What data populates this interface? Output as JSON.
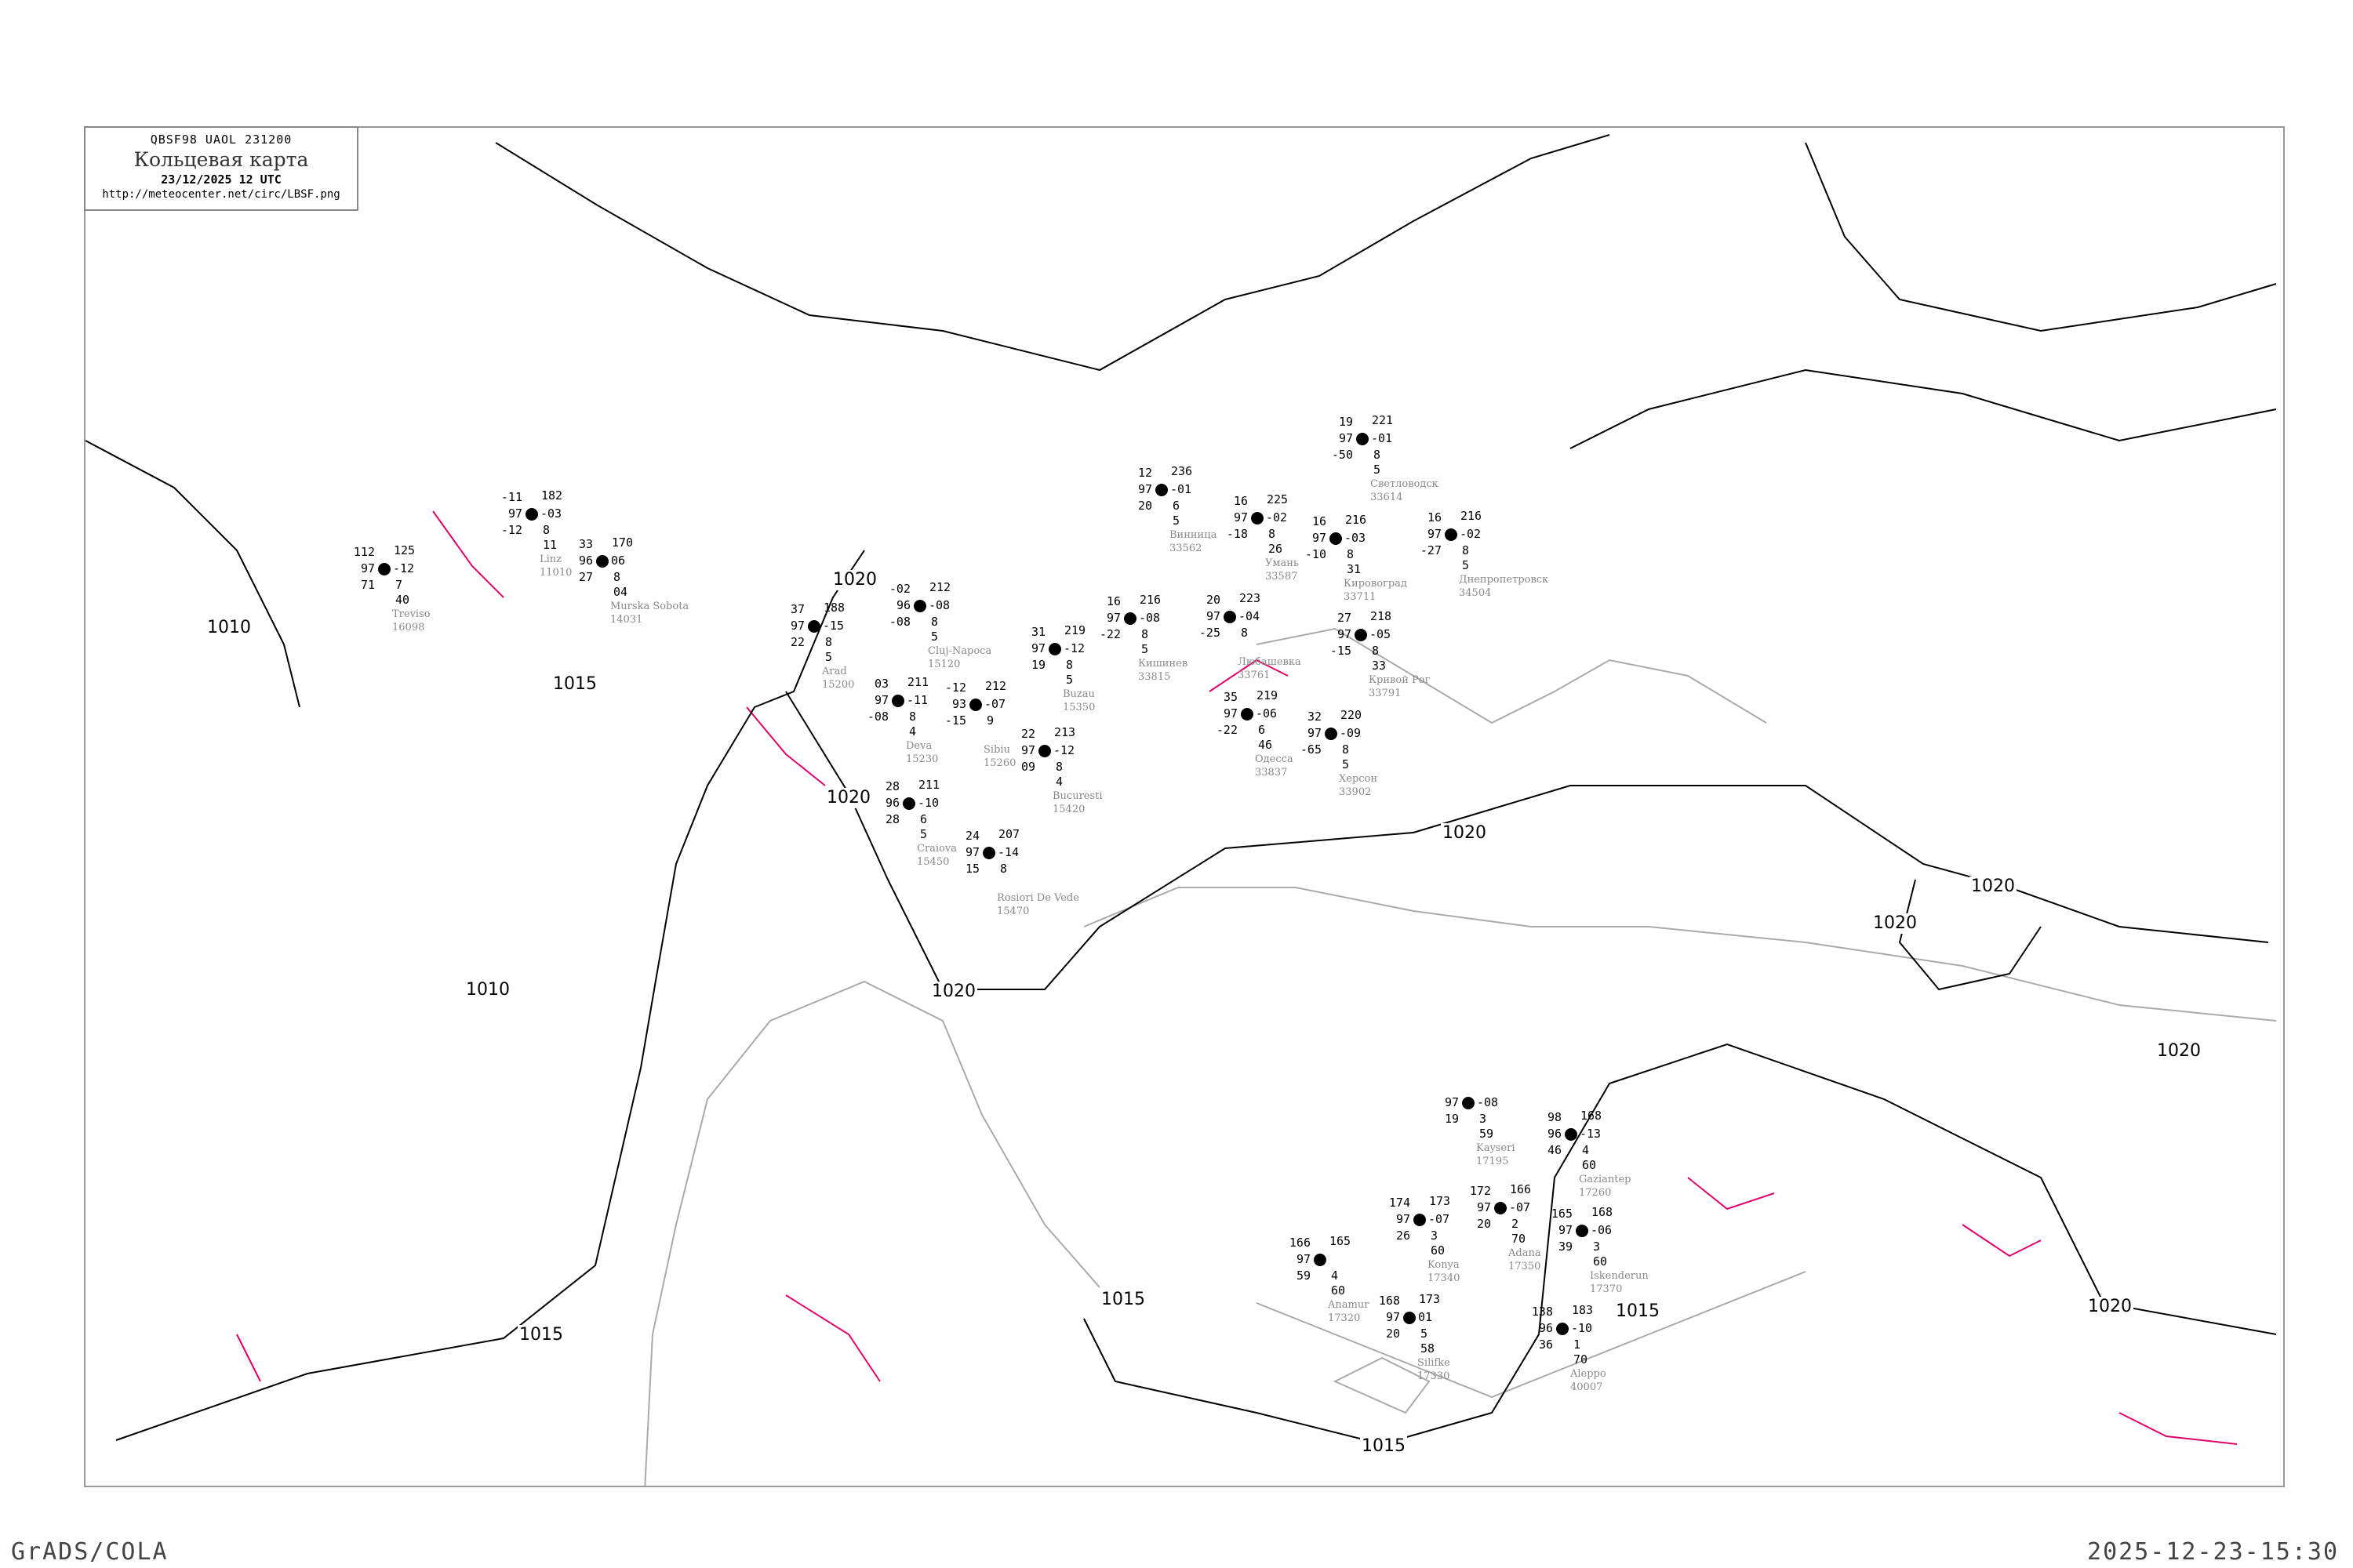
{
  "header": {
    "code": "QBSF98   UAOL   231200",
    "title": "Кольцевая карта",
    "date": "23/12/2025 12 UTC",
    "url": "http://meteocenter.net/circ/LBSF.png"
  },
  "footer": {
    "left": "GrADS/COLA",
    "right": "2025-12-23-15:30"
  },
  "colors": {
    "isobar": "#000000",
    "coastline": "#aaaaaa",
    "border": "#e0006a",
    "station_name": "#888888"
  },
  "isobar_labels": [
    "1020",
    "1020",
    "1020",
    "1020",
    "1020",
    "1020",
    "1020",
    "1020",
    "1015",
    "1015",
    "1015",
    "1015",
    "1015",
    "1010",
    "1010"
  ],
  "stations": [
    {
      "name": "Arad",
      "id": "15200",
      "t": "37",
      "p": "188",
      "l": "97",
      "r": "-15",
      "bl": "22",
      "b1": "8",
      "b2": "5"
    },
    {
      "name": "Cluj-Napoca",
      "id": "15120",
      "t": "-02",
      "p": "212",
      "l": "96",
      "r": "-08",
      "bl": "-08",
      "b1": "8",
      "b2": "5"
    },
    {
      "name": "Deva",
      "id": "15230",
      "t": "03",
      "p": "211",
      "l": "97",
      "r": "-11",
      "bl": "-08",
      "b1": "8",
      "b2": "4"
    },
    {
      "name": "Sibiu",
      "id": "15260",
      "t": "-12",
      "p": "212",
      "l": "93",
      "r": "-07",
      "bl": "-15",
      "b1": "9",
      "b2": ""
    },
    {
      "name": "Craiova",
      "id": "15450",
      "t": "28",
      "p": "211",
      "l": "96",
      "r": "-10",
      "bl": "28",
      "b1": "6",
      "b2": "5"
    },
    {
      "name": "Bucuresti",
      "id": "15420",
      "t": "22",
      "p": "213",
      "l": "97",
      "r": "-12",
      "bl": "09",
      "b1": "8",
      "b2": "4"
    },
    {
      "name": "Buzau",
      "id": "15350",
      "t": "31",
      "p": "219",
      "l": "97",
      "r": "-12",
      "bl": "19",
      "b1": "8",
      "b2": "5"
    },
    {
      "name": "Rosiori De Vede",
      "id": "15470",
      "t": "24",
      "p": "207",
      "l": "97",
      "r": "-14",
      "bl": "15",
      "b1": "8",
      "b2": ""
    },
    {
      "name": "Винница",
      "id": "33562",
      "t": "12",
      "p": "236",
      "l": "97",
      "r": "-01",
      "bl": "20",
      "b1": "6",
      "b2": "5"
    },
    {
      "name": "Умань",
      "id": "33587",
      "t": "16",
      "p": "225",
      "l": "97",
      "r": "-02",
      "bl": "-18",
      "b1": "8",
      "b2": "26"
    },
    {
      "name": "Любашевка",
      "id": "33761",
      "t": "20",
      "p": "223",
      "l": "97",
      "r": "-04",
      "bl": "-25",
      "b1": "8",
      "b2": ""
    },
    {
      "name": "Кировоград",
      "id": "33711",
      "t": "16",
      "p": "216",
      "l": "97",
      "r": "-03",
      "bl": "-10",
      "b1": "8",
      "b2": "31"
    },
    {
      "name": "Кривой Рог",
      "id": "33791",
      "t": "27",
      "p": "218",
      "l": "97",
      "r": "-05",
      "bl": "-15",
      "b1": "8",
      "b2": "33"
    },
    {
      "name": "Кишинев",
      "id": "33815",
      "t": "16",
      "p": "216",
      "l": "97",
      "r": "-08",
      "bl": "-22",
      "b1": "8",
      "b2": "5"
    },
    {
      "name": "Одесса",
      "id": "33837",
      "t": "35",
      "p": "219",
      "l": "97",
      "r": "-06",
      "bl": "-22",
      "b1": "6",
      "b2": "46"
    },
    {
      "name": "Херсон",
      "id": "33902",
      "t": "32",
      "p": "220",
      "l": "97",
      "r": "-09",
      "bl": "-65",
      "b1": "8",
      "b2": "5"
    },
    {
      "name": "Светловодск",
      "id": "33614",
      "t": "19",
      "p": "221",
      "l": "97",
      "r": "-01",
      "bl": "-50",
      "b1": "8",
      "b2": "5"
    },
    {
      "name": "Днепропетровск",
      "id": "34504",
      "t": "16",
      "p": "216",
      "l": "97",
      "r": "-02",
      "bl": "-27",
      "b1": "8",
      "b2": "5"
    },
    {
      "name": "Konya",
      "id": "17340",
      "t": "174",
      "p": "173",
      "l": "97",
      "r": "-07",
      "bl": "26",
      "b1": "3",
      "b2": "60"
    },
    {
      "name": "Anamur",
      "id": "17320",
      "t": "166",
      "p": "165",
      "l": "97",
      "r": "",
      "bl": "59",
      "b1": "4",
      "b2": "60"
    },
    {
      "name": "Silifke",
      "id": "17330",
      "t": "168",
      "p": "173",
      "l": "97",
      "r": "01",
      "bl": "20",
      "b1": "5",
      "b2": "58"
    },
    {
      "name": "Adana",
      "id": "17350",
      "t": "172",
      "p": "166",
      "l": "97",
      "r": "-07",
      "bl": "20",
      "b1": "2",
      "b2": "70"
    },
    {
      "name": "Iskenderun",
      "id": "17370",
      "t": "165",
      "p": "168",
      "l": "97",
      "r": "-06",
      "bl": "39",
      "b1": "3",
      "b2": "60"
    },
    {
      "name": "Gaziantep",
      "id": "17260",
      "t": "98",
      "p": "168",
      "l": "96",
      "r": "-13",
      "bl": "46",
      "b1": "4",
      "b2": "60"
    },
    {
      "name": "Aleppo",
      "id": "40007",
      "t": "138",
      "p": "183",
      "l": "96",
      "r": "-10",
      "bl": "36",
      "b1": "1",
      "b2": "70"
    },
    {
      "name": "Kayseri",
      "id": "17195",
      "t": "",
      "p": "",
      "l": "97",
      "r": "-08",
      "bl": "19",
      "b1": "3",
      "b2": "59"
    },
    {
      "name": "Linz",
      "id": "11010",
      "t": "-11",
      "p": "182",
      "l": "97",
      "r": "-03",
      "bl": "-12",
      "b1": "8",
      "b2": "11"
    },
    {
      "name": "Treviso",
      "id": "16098",
      "t": "112",
      "p": "125",
      "l": "97",
      "r": "-12",
      "bl": "71",
      "b1": "7",
      "b2": "40"
    },
    {
      "name": "Murska Sobota",
      "id": "14031",
      "t": "33",
      "p": "170",
      "l": "96",
      "r": "06",
      "bl": "27",
      "b1": "8",
      "b2": "04"
    }
  ]
}
